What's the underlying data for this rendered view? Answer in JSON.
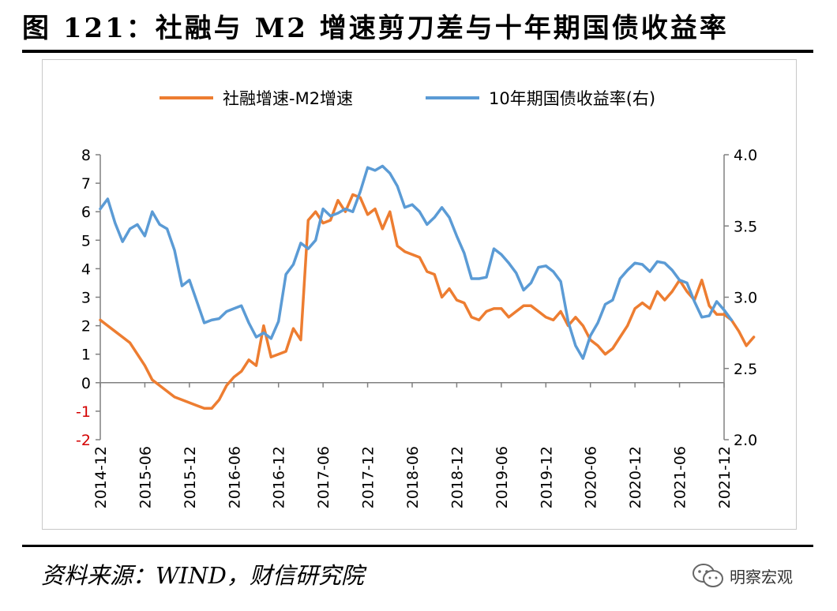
{
  "figure": {
    "title": "图 121：社融与 M2 增速剪刀差与十年期国债收益率",
    "source": "资料来源：WIND，财信研究院",
    "brand": "明察宏观"
  },
  "colors": {
    "series_orange": "#ED7D31",
    "series_blue": "#5B9BD5",
    "negative_tick": "#D40000"
  },
  "icons": {
    "brand": "wechat-bubble-icon"
  },
  "chart_data": {
    "type": "line",
    "title": "",
    "xlabel": "",
    "ylabel": "",
    "y2label": "",
    "legend_position": "top",
    "grid": false,
    "x_ticks": [
      "2014-12",
      "2015-06",
      "2015-12",
      "2016-06",
      "2016-12",
      "2017-06",
      "2017-12",
      "2018-06",
      "2018-12",
      "2019-06",
      "2019-12",
      "2020-06",
      "2020-12",
      "2021-06",
      "2021-12"
    ],
    "y_left": {
      "range": [
        -2,
        8
      ],
      "ticks": [
        "-2",
        "-1",
        "0",
        "1",
        "2",
        "3",
        "4",
        "5",
        "6",
        "7",
        "8"
      ]
    },
    "y_right": {
      "range": [
        2.0,
        4.0
      ],
      "ticks": [
        "2.0",
        "2.5",
        "3.0",
        "3.5",
        "4.0"
      ]
    },
    "series": [
      {
        "name": "社融增速-M2增速",
        "axis": "left",
        "x_start": "2014-12",
        "values": [
          2.2,
          2.0,
          1.8,
          1.6,
          1.4,
          1.0,
          0.6,
          0.1,
          -0.1,
          -0.3,
          -0.5,
          -0.6,
          -0.7,
          -0.8,
          -0.9,
          -0.9,
          -0.6,
          -0.1,
          0.2,
          0.4,
          0.8,
          0.6,
          2.0,
          0.9,
          1.0,
          1.1,
          1.9,
          1.5,
          5.7,
          6.0,
          5.6,
          5.7,
          6.4,
          6.0,
          6.6,
          6.5,
          5.9,
          6.1,
          5.4,
          6.0,
          4.8,
          4.6,
          4.5,
          4.4,
          3.9,
          3.8,
          3.0,
          3.3,
          2.9,
          2.8,
          2.3,
          2.2,
          2.5,
          2.6,
          2.6,
          2.3,
          2.5,
          2.7,
          2.7,
          2.5,
          2.3,
          2.2,
          2.5,
          2.0,
          2.3,
          2.0,
          1.5,
          1.3,
          1.0,
          1.2,
          1.6,
          2.0,
          2.6,
          2.8,
          2.6,
          3.2,
          2.9,
          3.2,
          3.6,
          3.2,
          2.9,
          3.6,
          2.7,
          2.4,
          2.4,
          2.2,
          1.8,
          1.3,
          1.6
        ]
      },
      {
        "name": "10年期国债收益率(右)",
        "axis": "right",
        "x_start": "2014-12",
        "values": [
          3.62,
          3.69,
          3.52,
          3.39,
          3.48,
          3.51,
          3.43,
          3.6,
          3.51,
          3.48,
          3.33,
          3.08,
          3.12,
          2.97,
          2.82,
          2.84,
          2.85,
          2.9,
          2.92,
          2.94,
          2.82,
          2.72,
          2.75,
          2.71,
          2.83,
          3.16,
          3.23,
          3.38,
          3.34,
          3.4,
          3.62,
          3.57,
          3.59,
          3.62,
          3.6,
          3.74,
          3.91,
          3.89,
          3.92,
          3.87,
          3.78,
          3.63,
          3.65,
          3.6,
          3.51,
          3.56,
          3.63,
          3.56,
          3.43,
          3.31,
          3.13,
          3.13,
          3.14,
          3.34,
          3.3,
          3.24,
          3.17,
          3.05,
          3.1,
          3.21,
          3.22,
          3.18,
          3.11,
          2.83,
          2.66,
          2.57,
          2.73,
          2.82,
          2.95,
          2.98,
          3.13,
          3.19,
          3.24,
          3.23,
          3.18,
          3.25,
          3.24,
          3.19,
          3.12,
          3.1,
          2.97,
          2.86,
          2.87,
          2.97,
          2.91,
          2.84
        ]
      }
    ]
  }
}
